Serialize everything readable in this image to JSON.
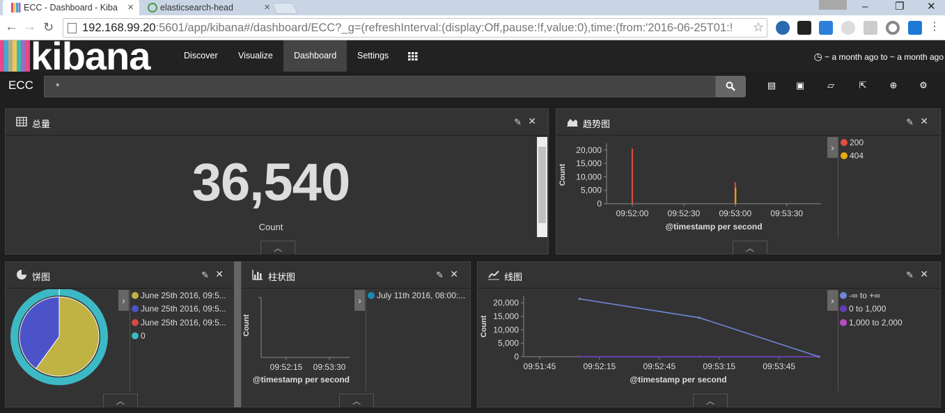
{
  "browser": {
    "tabs": [
      {
        "title": "ECC - Dashboard - Kiba",
        "active": true
      },
      {
        "title": "elasticsearch-head",
        "active": false
      }
    ],
    "url_host": "192.168.99.20",
    "url_rest": ":5601/app/kibana#/dashboard/ECC?_g=(refreshInterval:(display:Off,pause:!f,value:0),time:(from:'2016-06-25T01:!"
  },
  "kibana": {
    "logo_text": "kibana",
    "logo_colors": [
      "#e8488b",
      "#3caed2",
      "#b9a888",
      "#ebc854",
      "#3cbab1",
      "#9a6dbd",
      "#e8488b"
    ],
    "nav": [
      "Discover",
      "Visualize",
      "Dashboard",
      "Settings"
    ],
    "active_nav": "Dashboard",
    "time_range": "~ a month ago to ~ a month ago",
    "dashboard_title": "ECC",
    "query": "*"
  },
  "panels": {
    "total": {
      "title": "总量",
      "value": "36,540",
      "label": "Count"
    },
    "trend": {
      "title": "趋势图",
      "legend": [
        {
          "label": "200",
          "color": "#e24d42"
        },
        {
          "label": "404",
          "color": "#e5ac0e"
        }
      ]
    },
    "pie": {
      "title": "饼图",
      "legend": [
        {
          "label": "June 25th 2016, 09:5...",
          "color": "#c0b243"
        },
        {
          "label": "June 25th 2016, 09:5...",
          "color": "#4c53c9"
        },
        {
          "label": "June 25th 2016, 09:5...",
          "color": "#d14b3f"
        },
        {
          "label": "0",
          "color": "#3cb9c4"
        }
      ]
    },
    "bar": {
      "title": "柱状图",
      "legend": [
        {
          "label": "July 11th 2016, 08:00:...",
          "color": "#1a88b4"
        }
      ]
    },
    "line": {
      "title": "线图",
      "legend": [
        {
          "label": "-∞ to +∞",
          "color": "#6f87d8"
        },
        {
          "label": "0 to 1,000",
          "color": "#663db8"
        },
        {
          "label": "1,000 to 2,000",
          "color": "#b94ac4"
        }
      ]
    }
  },
  "chart_data": [
    {
      "panel": "趋势图",
      "type": "bar",
      "xlabel": "@timestamp per second",
      "ylabel": "Count",
      "yticks": [
        0,
        5000,
        10000,
        15000,
        20000
      ],
      "xticks": [
        "09:52:00",
        "09:52:30",
        "09:53:00",
        "09:53:30"
      ],
      "ylim": [
        0,
        21500
      ],
      "series": [
        {
          "name": "200",
          "points": [
            {
              "t": "09:52:00",
              "v": 20500
            },
            {
              "t": "09:53:00",
              "v": 8000
            }
          ]
        },
        {
          "name": "404",
          "points": [
            {
              "t": "09:53:00",
              "v": 6000
            }
          ]
        }
      ]
    },
    {
      "panel": "饼图",
      "type": "pie",
      "slices": [
        {
          "label": "June 25th 2016, 09:5...",
          "value": 60
        },
        {
          "label": "June 25th 2016, 09:5...",
          "value": 40
        },
        {
          "label": "June 25th 2016, 09:5...",
          "value": 0
        }
      ],
      "outer_ring": {
        "label": "0",
        "value": 100
      }
    },
    {
      "panel": "柱状图",
      "type": "bar",
      "xlabel": "@timestamp per second",
      "ylabel": "Count",
      "xticks": [
        "09:52:15",
        "09:53:30"
      ],
      "series": [
        {
          "name": "July 11th 2016, 08:00:...",
          "values": []
        }
      ]
    },
    {
      "panel": "线图",
      "type": "line",
      "xlabel": "@timestamp per second",
      "ylabel": "Count",
      "yticks": [
        0,
        5000,
        10000,
        15000,
        20000
      ],
      "xticks": [
        "09:51:45",
        "09:52:15",
        "09:52:45",
        "09:53:15",
        "09:53:45"
      ],
      "ylim": [
        0,
        22500
      ],
      "series": [
        {
          "name": "-∞ to +∞",
          "points": [
            {
              "t": "09:52:05",
              "v": 21500
            },
            {
              "t": "09:53:05",
              "v": 14500
            },
            {
              "t": "09:54:05",
              "v": 0
            }
          ]
        },
        {
          "name": "0 to 1,000",
          "points": [
            {
              "t": "09:52:05",
              "v": 0
            },
            {
              "t": "09:53:05",
              "v": 0
            },
            {
              "t": "09:54:05",
              "v": 0
            }
          ]
        },
        {
          "name": "1,000 to 2,000",
          "points": [
            {
              "t": "09:52:05",
              "v": 0
            },
            {
              "t": "09:53:05",
              "v": 0
            },
            {
              "t": "09:54:05",
              "v": 0
            }
          ]
        }
      ]
    }
  ]
}
